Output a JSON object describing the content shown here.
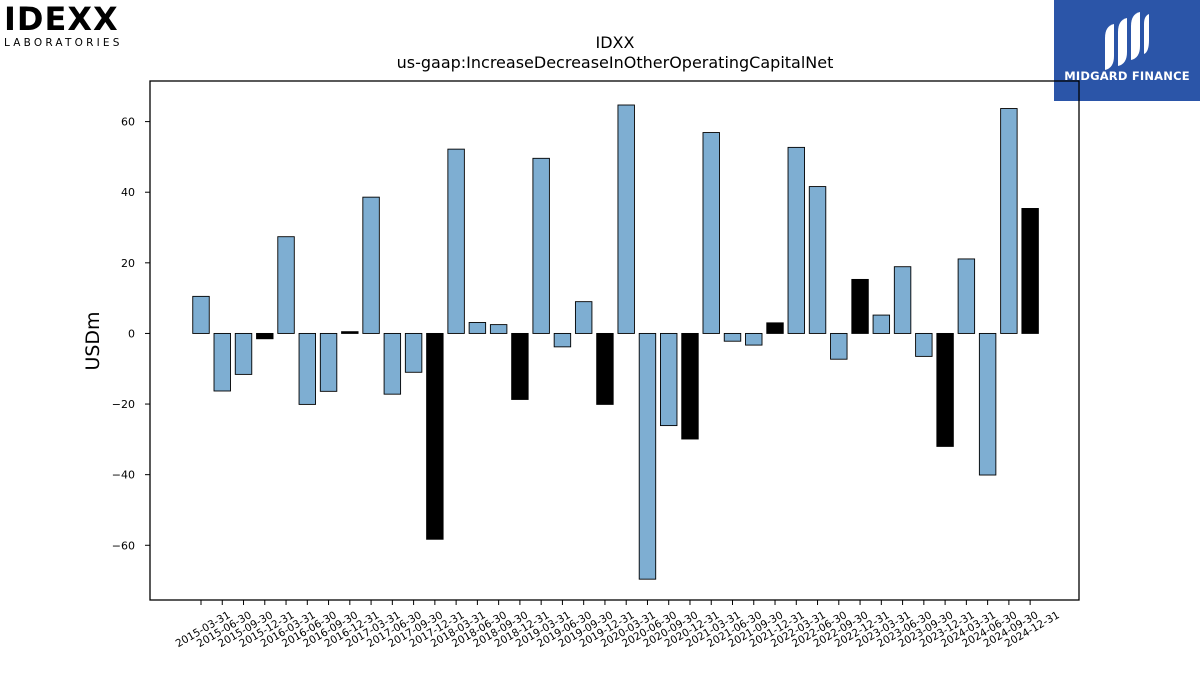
{
  "logos": {
    "left": {
      "name": "IDEXX",
      "subtitle": "LABORATORIES"
    },
    "right": {
      "name": "MIDGARD FINANCE",
      "background": "#2b55a8"
    }
  },
  "chart_data": {
    "type": "bar",
    "title": "IDXX",
    "subtitle": "us-gaap:IncreaseDecreaseInOtherOperatingCapitalNet",
    "xlabel": "",
    "ylabel": "USDm",
    "ylim": [
      -75.5,
      71.5
    ],
    "yticks": [
      -60,
      -40,
      -20,
      0,
      20,
      40,
      60
    ],
    "grid": false,
    "colors": {
      "quarterly": "#7eaed2",
      "year_end": "#000000"
    },
    "categories": [
      "2015-03-31",
      "2015-06-30",
      "2015-09-30",
      "2015-12-31",
      "2016-03-31",
      "2016-06-30",
      "2016-09-30",
      "2016-12-31",
      "2017-03-31",
      "2017-06-30",
      "2017-09-30",
      "2017-12-31",
      "2018-03-31",
      "2018-06-30",
      "2018-09-30",
      "2018-12-31",
      "2019-03-31",
      "2019-06-30",
      "2019-09-30",
      "2019-12-31",
      "2020-03-31",
      "2020-06-30",
      "2020-09-30",
      "2020-12-31",
      "2021-03-31",
      "2021-06-30",
      "2021-09-30",
      "2021-12-31",
      "2022-03-31",
      "2022-06-30",
      "2022-09-30",
      "2022-12-31",
      "2023-03-31",
      "2023-06-30",
      "2023-09-30",
      "2023-12-31",
      "2024-03-31",
      "2024-06-30",
      "2024-09-30",
      "2024-12-31"
    ],
    "values": [
      10.5,
      -16.3,
      -11.6,
      -1.5,
      27.4,
      -20.1,
      -16.4,
      0.5,
      38.6,
      -17.2,
      -11.0,
      -58.3,
      52.2,
      3.1,
      2.5,
      -18.7,
      49.6,
      -3.8,
      9.0,
      -20.1,
      64.7,
      -69.6,
      -26.1,
      -29.9,
      56.9,
      -2.2,
      -3.3,
      3.0,
      52.7,
      41.6,
      -7.3,
      15.3,
      5.2,
      18.9,
      -6.5,
      -32.0,
      21.1,
      -40.1,
      63.7,
      35.4
    ],
    "year_end": [
      false,
      false,
      false,
      true,
      false,
      false,
      false,
      true,
      false,
      false,
      false,
      true,
      false,
      false,
      false,
      true,
      false,
      false,
      false,
      true,
      false,
      false,
      false,
      true,
      false,
      false,
      false,
      true,
      false,
      false,
      false,
      true,
      false,
      false,
      false,
      true,
      false,
      false,
      false,
      true
    ]
  }
}
